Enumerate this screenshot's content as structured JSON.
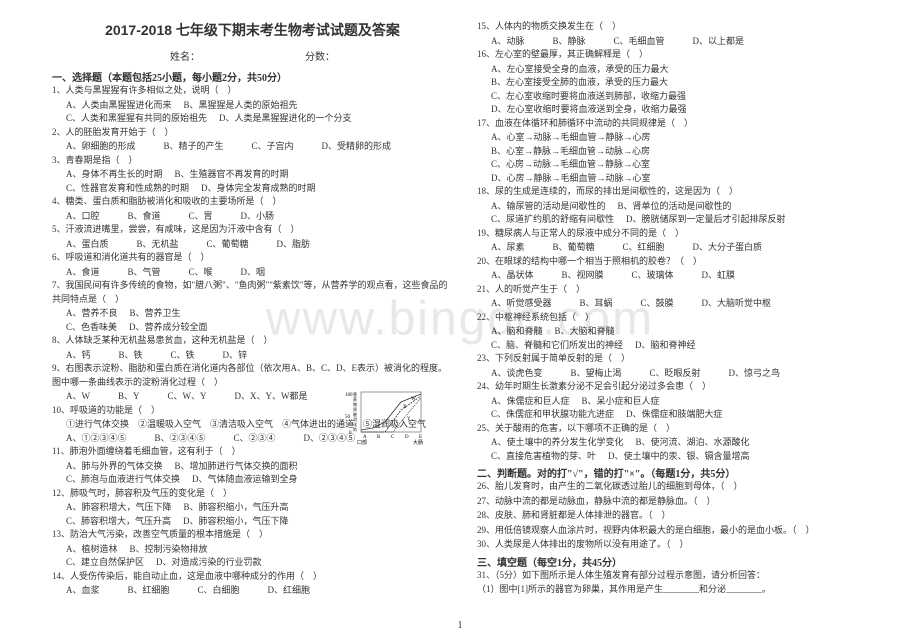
{
  "title": "2017-2018 七年级下期末考生物考试试题及答案",
  "nameLabel": "姓名：",
  "scoreLabel": "分数：",
  "watermark": "www.bingdc.com",
  "pageNumber": "1",
  "sectionA": {
    "header": "一、选择题（本题包括25小题，每小题2分，共50分）"
  },
  "questions": [
    {
      "n": "1",
      "stem": "人类与黑猩猩有许多相似之处，说明（　）",
      "opts": [
        "A、人类由黑猩猩进化而来",
        "B、黑猩猩是人类的原始祖先",
        "C、人类和黑猩猩有共同的原始祖先",
        "D、人类是黑猩猩进化的一个分支"
      ],
      "layout": "2x2"
    },
    {
      "n": "2",
      "stem": "人的胚胎发育开始于（　）",
      "opts": [
        "A、卵细胞的形成",
        "B、精子的产生",
        "C、子宫内",
        "D、受精卵的形成"
      ],
      "layout": "4"
    },
    {
      "n": "3",
      "stem": "青春期是指（　）",
      "opts": [
        "A、身体不再生长的时期",
        "B、生殖器官不再发育的时期",
        "C、性器官发育和性成熟的时期",
        "D、身体完全发育成熟的时期"
      ],
      "layout": "2x2"
    },
    {
      "n": "4",
      "stem": "糖类、蛋白质和脂肪被消化和吸收的主要场所是（　）",
      "opts": [
        "A、口腔",
        "B、食道",
        "C、胃",
        "D、小肠"
      ],
      "layout": "4"
    },
    {
      "n": "5",
      "stem": "汗液流进嘴里，尝尝，有咸味，这是因为汗液中含有（　）",
      "opts": [
        "A、蛋白质",
        "B、无机盐",
        "C、葡萄糖",
        "D、脂肪"
      ],
      "layout": "4"
    },
    {
      "n": "6",
      "stem": "呼吸道和消化道共有的器官是（　）",
      "opts": [
        "A、食道",
        "B、气管",
        "C、喉",
        "D、咽"
      ],
      "layout": "4"
    },
    {
      "n": "7",
      "stem": "我国民间有许多传统的食物，如\"腊八粥\"、\"鱼肉粥\"\"紫素饮\"等，从营养学的观点看，这些食品的共同特点是（　）",
      "opts": [
        "A、营养不良",
        "B、营养卫生",
        "C、色香味美",
        "D、营养成分较全面"
      ],
      "layout": "2x2"
    },
    {
      "n": "8",
      "stem": "人体缺乏某种无机盐易患贫血，这种无机盐是（　）",
      "opts": [
        "A、钙",
        "B、铁",
        "C、铁",
        "D、锌"
      ],
      "layout": "4"
    },
    {
      "n": "9",
      "stem": "右图表示淀粉、脂肪和蛋白质在消化道内各部位（依次用A、B、C、D、E表示）被消化的程度。图中哪一条曲线表示的淀粉消化过程（　）",
      "opts": [
        "A、W",
        "B、Y",
        "C、W、Y",
        "D、X、Y、W都是"
      ],
      "layout": "4",
      "hasChart": true
    },
    {
      "n": "10",
      "stem": "呼吸道的功能是（　）",
      "sub": "①进行气体交换　②温暖吸入空气　③清洁吸入空气　④气体进出的通道　⑤湿润吸入空气",
      "opts": [
        "A、①②③④⑤",
        "B、②③④⑤",
        "C、②③④",
        "D、②③④⑤"
      ],
      "layout": "4"
    },
    {
      "n": "11",
      "stem": "肺泡外面缠绕着毛细血管，这有利于（　）",
      "opts": [
        "A、肺与外界的气体交换",
        "B、增加肺进行气体交换的面积",
        "C、肺泡与血液进行气体交换",
        "D、气体随血液运输到全身"
      ],
      "layout": "2x2"
    },
    {
      "n": "12",
      "stem": "肺吸气时，肺容积及气压的变化是（　）",
      "opts": [
        "A、肺容积增大，气压下降",
        "B、肺容积缩小，气压升高",
        "C、肺容积增大，气压升高",
        "D、肺容积缩小，气压下降"
      ],
      "layout": "2x2"
    },
    {
      "n": "13",
      "stem": "防治大气污染，改善空气质量的根本措施是（　）",
      "opts": [
        "A、植树造林",
        "B、控制污染物排放",
        "C、建立自然保护区",
        "D、对造成污染的行业罚款"
      ],
      "layout": "2x2"
    },
    {
      "n": "14",
      "stem": "人受伤传染后，能自动止血，这是血液中哪种成分的作用（　）",
      "opts": [
        "A、血浆",
        "B、红细胞",
        "C、白细胞",
        "D、红细胞"
      ],
      "layout": "4"
    },
    {
      "n": "15",
      "stem": "人体内的物质交换发生在（　）",
      "opts": [
        "A、动脉",
        "B、静脉",
        "C、毛细血管",
        "D、以上都是"
      ],
      "layout": "4"
    },
    {
      "n": "16",
      "stem": "左心室的壁最厚，其正确解释是（　）",
      "opts": [
        "A、左心室接受全身的血液，承受的压力最大",
        "B、左心室接受全肺的血液，承受的压力最大",
        "C、左心室收缩时要将血液送到肺部，收缩力最强",
        "D、左心室收缩时要将血液送到全身，收缩力最强"
      ],
      "layout": "1"
    },
    {
      "n": "17",
      "stem": "血液在体循环和肺循环中流动的共同规律是（　）",
      "opts": [
        "A、心室→动脉→毛细血管→静脉→心房",
        "B、心室→静脉→毛细血管→动脉→心房",
        "C、心房→动脉→毛细血管→静脉→心室",
        "D、心房→静脉→毛细血管→动脉→心室"
      ],
      "layout": "1"
    },
    {
      "n": "18",
      "stem": "尿的生成是连续的，而尿的排出是间歇性的，这是因为（　）",
      "opts": [
        "A、输尿管的活动是间歇性的",
        "B、肾单位的活动是间歇性的",
        "C、尿道扩约肌的舒缩有间歇性",
        "D、膀胱储尿到一定量后才引起排尿反射"
      ],
      "layout": "2x2"
    },
    {
      "n": "19",
      "stem": "糖尿病人与正常人的尿液中成分不同的是（　）",
      "opts": [
        "A、尿素",
        "B、葡萄糖",
        "C、红细胞",
        "D、大分子蛋白质"
      ],
      "layout": "4"
    },
    {
      "n": "20",
      "stem": "在眼球的结构中哪一个相当于照相机的胶卷？（　）",
      "opts": [
        "A、晶状体",
        "B、视网膜",
        "C、玻璃体",
        "D、虹膜"
      ],
      "layout": "4"
    },
    {
      "n": "21",
      "stem": "人的听觉产生于（　）",
      "opts": [
        "A、听觉感受器",
        "B、耳蜗",
        "C、鼓膜",
        "D、大脑听觉中枢"
      ],
      "layout": "4"
    },
    {
      "n": "22",
      "stem": "中枢神经系统包括（　）",
      "opts": [
        "A、脑和脊髓",
        "B、大脑和脊髓",
        "C、脑、脊髓和它们所发出的神经",
        "D、脑和脊神经"
      ],
      "layout": "2x2"
    },
    {
      "n": "23",
      "stem": "下列反射属于简单反射的是（　）",
      "opts": [
        "A、谈虎色变",
        "B、望梅止渴",
        "C、眨眼反射",
        "D、惊弓之鸟"
      ],
      "layout": "4"
    },
    {
      "n": "24",
      "stem": "幼年时期生长激素分泌不足会引起分泌过多会患（　）",
      "opts": [
        "A、侏儒症和巨人症",
        "B、呆小症和巨人症",
        "C、侏儒症和甲状腺功能亢进症",
        "D、侏儒症和肢端肥大症"
      ],
      "layout": "2x2"
    },
    {
      "n": "25",
      "stem": "关于酸雨的危害，以下哪项不正确的是（　）",
      "opts": [
        "A、使土壤中的养分发生化学变化",
        "B、使河流、湖泊、水源酸化",
        "C、直接危害植物的芽、叶",
        "D、使土壤中的汞、银、镉含量增高"
      ],
      "layout": "2x2"
    }
  ],
  "sectionB": {
    "header": "二、判断题。对的打\"√\"，错的打\"×\"。（每题1分，共5分）",
    "items": [
      "26、胎儿发育时，由产生的二氧化碳透过胎儿的细胞到母体，（　）",
      "27、动脉中流的都是动脉血，静脉中流的都是静脉血。（　）",
      "28、皮肤、肺和肾脏都是人体排泄的器官。（　）",
      "29、用低倍镜观察人血涂片时，视野内体积最大的是白细胞，最小的是血小板。（　）",
      "30、人类尿是人体排出的废物所以没有用途了。（　）"
    ]
  },
  "sectionC": {
    "header": "三、填空题（每空1分，共45分）",
    "items": [
      "31、（5分）如下图所示是人体生殖发育有部分过程示意图，请分析回答：",
      "（1）图中[1]所示的器官为卵巢，其作用是产生________和分泌________。"
    ]
  },
  "chart": {
    "ylabel": "营养物质被消化的程度",
    "ymax": 100,
    "ymin": 0,
    "xlabels": [
      "A",
      "B",
      "C",
      "D",
      "E"
    ],
    "xaxis_left": "口部",
    "xaxis_right": "大肠",
    "curves": [
      "W",
      "X",
      "Y"
    ]
  }
}
